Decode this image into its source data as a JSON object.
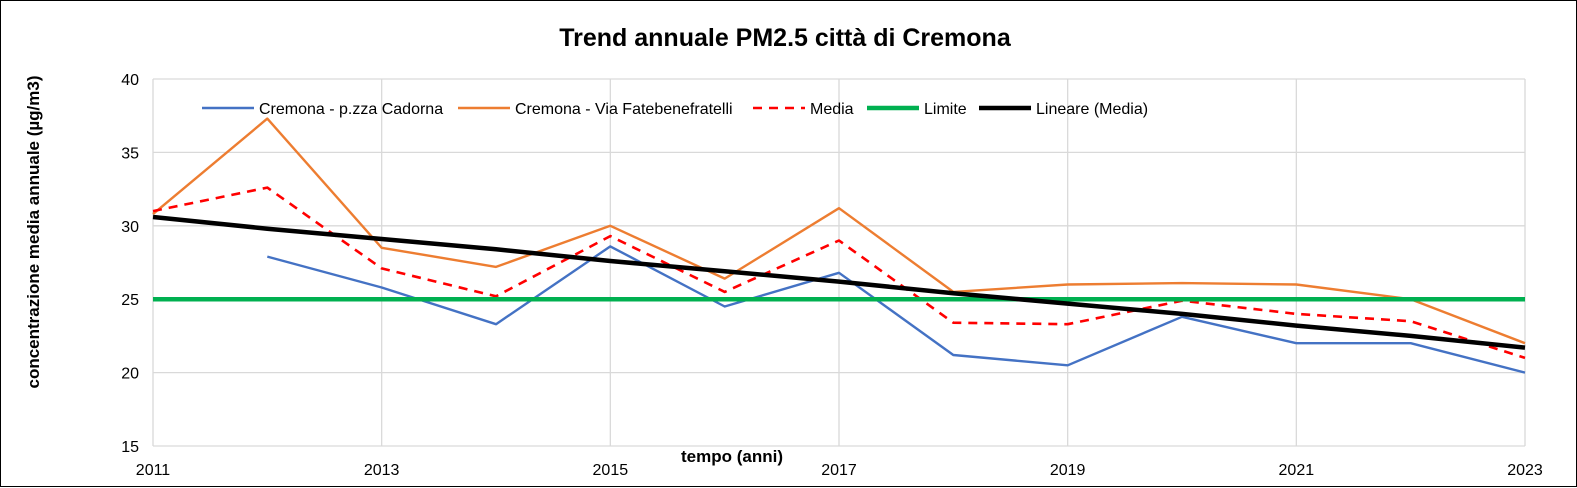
{
  "chart_data": {
    "type": "line",
    "title": "Trend annuale PM2.5 città di Cremona",
    "xlabel": "tempo (anni)",
    "ylabel": "concentrazione media annuale (µg/m3)",
    "xlim": [
      2011,
      2023
    ],
    "ylim": [
      15,
      40
    ],
    "x_ticks": [
      "2011",
      "2013",
      "2015",
      "2017",
      "2019",
      "2021",
      "2023"
    ],
    "y_ticks": [
      "15",
      "20",
      "25",
      "30",
      "35",
      "40"
    ],
    "grid": true,
    "legend_position": "top",
    "x": [
      2011,
      2012,
      2013,
      2014,
      2015,
      2016,
      2017,
      2018,
      2019,
      2020,
      2021,
      2022,
      2023
    ],
    "series": [
      {
        "name": "Cremona - p.zza Cadorna",
        "color": "#4472C4",
        "style": "solid",
        "values": [
          null,
          27.9,
          25.8,
          23.3,
          28.6,
          24.5,
          26.8,
          21.2,
          20.5,
          23.8,
          22.0,
          22.0,
          20.0
        ]
      },
      {
        "name": "Cremona - Via Fatebenefratelli",
        "color": "#ED7D31",
        "style": "solid",
        "values": [
          30.8,
          37.3,
          28.5,
          27.2,
          30.0,
          26.4,
          31.2,
          25.5,
          26.0,
          26.1,
          26.0,
          25.0,
          22.0
        ]
      },
      {
        "name": "Media",
        "color": "#FF0000",
        "style": "dashed",
        "values": [
          31.0,
          32.6,
          27.1,
          25.2,
          29.3,
          25.5,
          29.0,
          23.4,
          23.3,
          24.9,
          24.0,
          23.5,
          21.0
        ]
      },
      {
        "name": "Limite",
        "color": "#00B050",
        "style": "solid",
        "values": [
          25,
          25,
          25,
          25,
          25,
          25,
          25,
          25,
          25,
          25,
          25,
          25,
          25
        ]
      },
      {
        "name": "Lineare (Media)",
        "color": "#000000",
        "style": "solid",
        "values": [
          30.6,
          29.8,
          29.1,
          28.4,
          27.6,
          26.9,
          26.2,
          25.4,
          24.7,
          24.0,
          23.2,
          22.5,
          21.7
        ]
      }
    ]
  }
}
